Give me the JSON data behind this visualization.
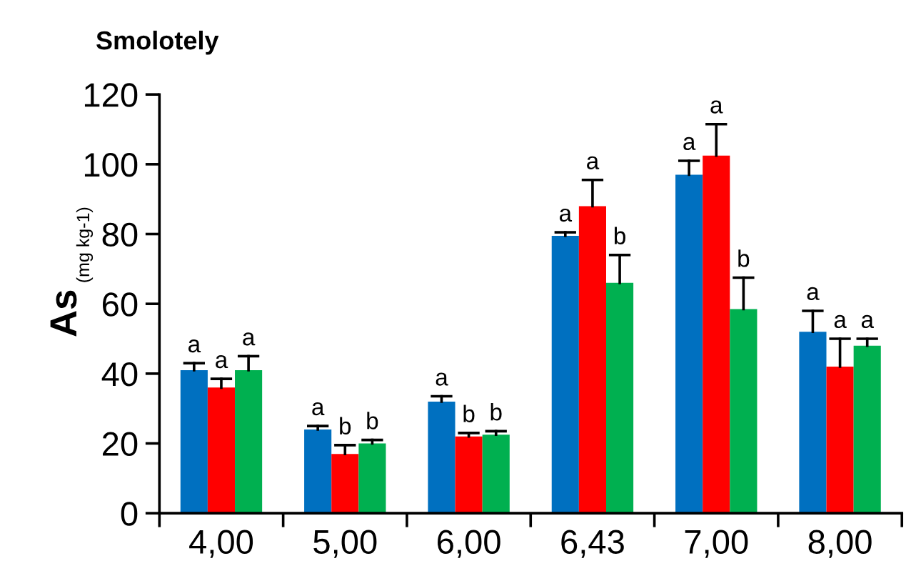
{
  "chart_data": {
    "type": "bar",
    "title": "Smolotely",
    "ylabel": "As$^{(mg kg-1)}$",
    "categories": [
      "4,00",
      "5,00",
      "6,00",
      "6,43",
      "7,00",
      "8,00"
    ],
    "series": [
      {
        "color": "#0070c0",
        "values": [
          41,
          24,
          32,
          79.5,
          97,
          52
        ],
        "errors": [
          [
            41,
            43
          ],
          [
            24,
            25
          ],
          [
            32,
            33.5
          ],
          [
            79.5,
            80.5
          ],
          [
            97,
            101
          ],
          [
            52,
            58
          ]
        ],
        "value_labels": [
          "a",
          "a",
          "a",
          "a",
          "a",
          "a"
        ]
      },
      {
        "color": "#ff0000",
        "values": [
          36,
          17,
          22,
          88,
          102.5,
          42
        ],
        "errors": [
          [
            36,
            38.5
          ],
          [
            17,
            19.5
          ],
          [
            22,
            23
          ],
          [
            88,
            95.5
          ],
          [
            102.5,
            111.5
          ],
          [
            42,
            50
          ]
        ],
        "value_labels": [
          "a",
          "b",
          "b",
          "a",
          "a",
          "a"
        ]
      },
      {
        "color": "#00b050",
        "values": [
          41,
          20,
          22.5,
          66,
          58.5,
          48
        ],
        "errors": [
          [
            41,
            45
          ],
          [
            20,
            21
          ],
          [
            22.5,
            23.5
          ],
          [
            66,
            74
          ],
          [
            58.5,
            67.5
          ],
          [
            48,
            50
          ]
        ],
        "value_labels": [
          "a",
          "b",
          "b",
          "b",
          "b",
          "a"
        ]
      }
    ],
    "ylim": [
      0,
      120
    ],
    "yticks": [
      0,
      20,
      40,
      60,
      80,
      100,
      120
    ],
    "grid": false,
    "legend": false
  }
}
